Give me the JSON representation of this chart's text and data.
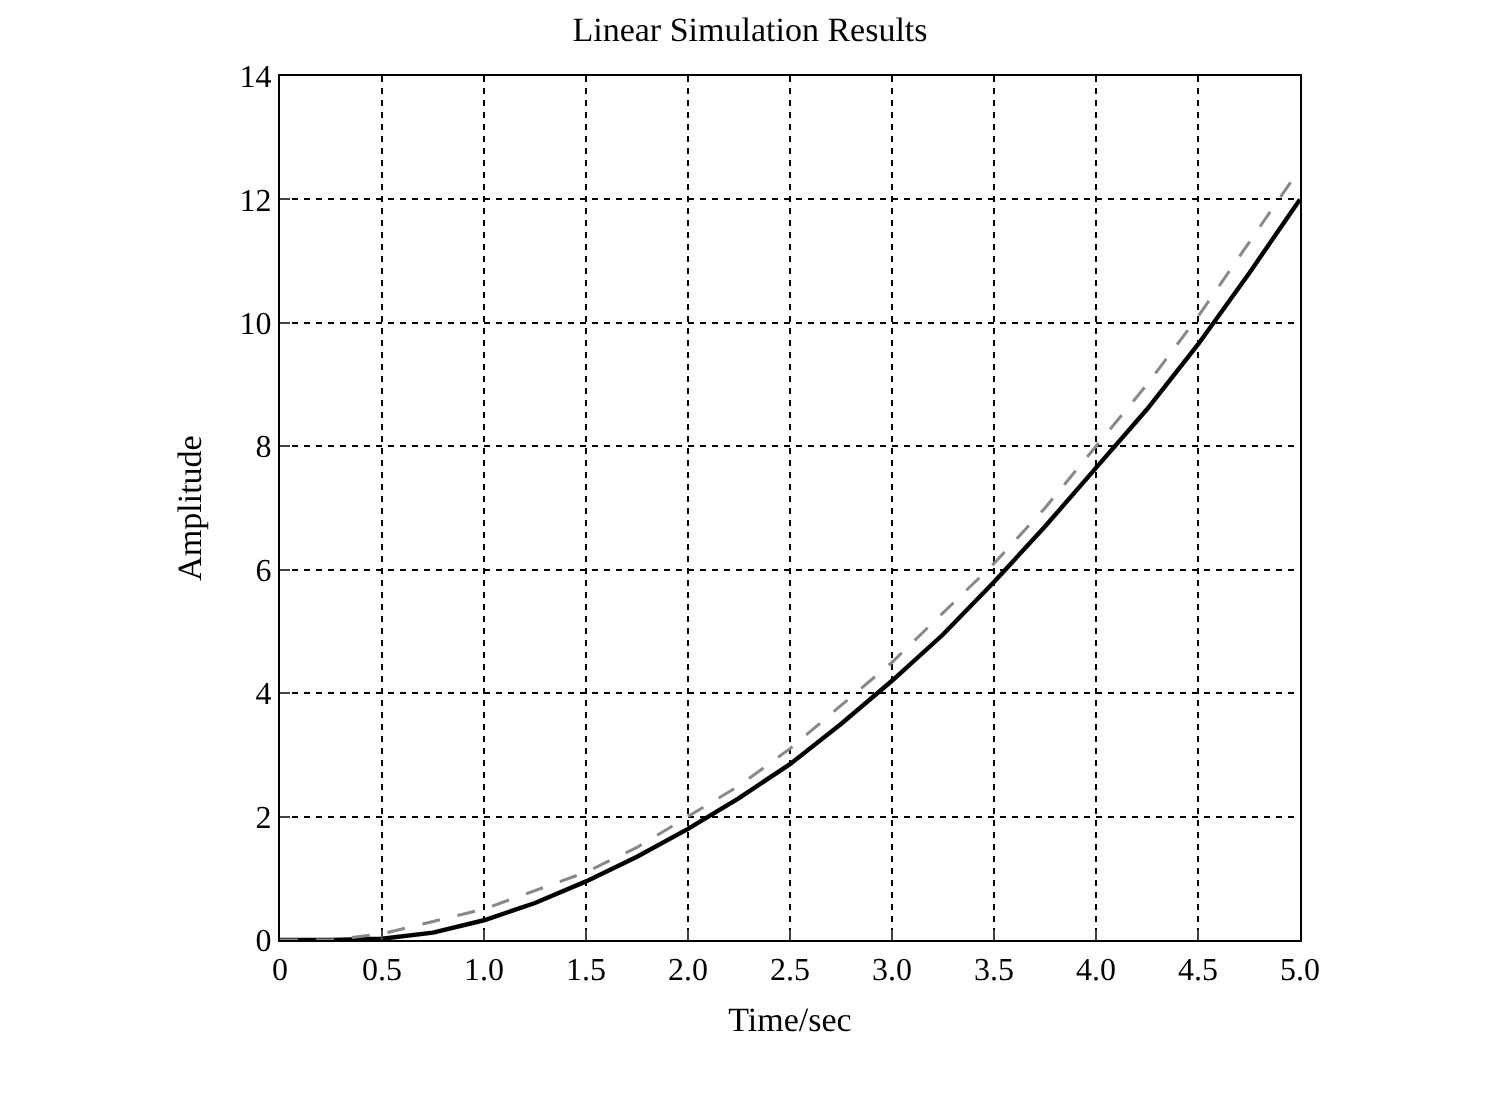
{
  "chart_data": {
    "type": "line",
    "title": "Linear Simulation Results",
    "xlabel": "Time/sec",
    "ylabel": "Amplitude",
    "x": [
      0,
      0.25,
      0.5,
      0.75,
      1.0,
      1.25,
      1.5,
      1.75,
      2.0,
      2.25,
      2.5,
      2.75,
      3.0,
      3.25,
      3.5,
      3.75,
      4.0,
      4.25,
      4.5,
      4.75,
      5.0
    ],
    "series": [
      {
        "color": "#000000",
        "line_style": "solid",
        "values": [
          0,
          0,
          0.02,
          0.12,
          0.32,
          0.6,
          0.95,
          1.35,
          1.8,
          2.3,
          2.85,
          3.5,
          4.2,
          4.95,
          5.8,
          6.7,
          7.65,
          8.6,
          9.65,
          10.8,
          12.0
        ]
      },
      {
        "color": "#888888",
        "line_style": "dashed",
        "values": [
          0,
          0.0,
          0.1,
          0.3,
          0.5,
          0.8,
          1.1,
          1.5,
          2.0,
          2.5,
          3.1,
          3.8,
          4.5,
          5.3,
          6.1,
          7.0,
          8.0,
          9.0,
          10.1,
          11.3,
          12.5
        ]
      }
    ],
    "xlim": [
      0,
      5
    ],
    "xticks": [
      0,
      0.5,
      {
        "value": 1,
        "label": "1.0"
      },
      1.5,
      {
        "value": 2,
        "label": "2.0"
      },
      2.5,
      {
        "value": 3,
        "label": "3.0"
      },
      3.5,
      {
        "value": 4,
        "label": "4.0"
      },
      4.5,
      {
        "value": 5,
        "label": "5.0"
      }
    ],
    "ylim": [
      0,
      14
    ],
    "yticks": [
      0,
      2,
      4,
      6,
      8,
      10,
      12,
      14
    ],
    "grid": true,
    "marker": "none"
  }
}
